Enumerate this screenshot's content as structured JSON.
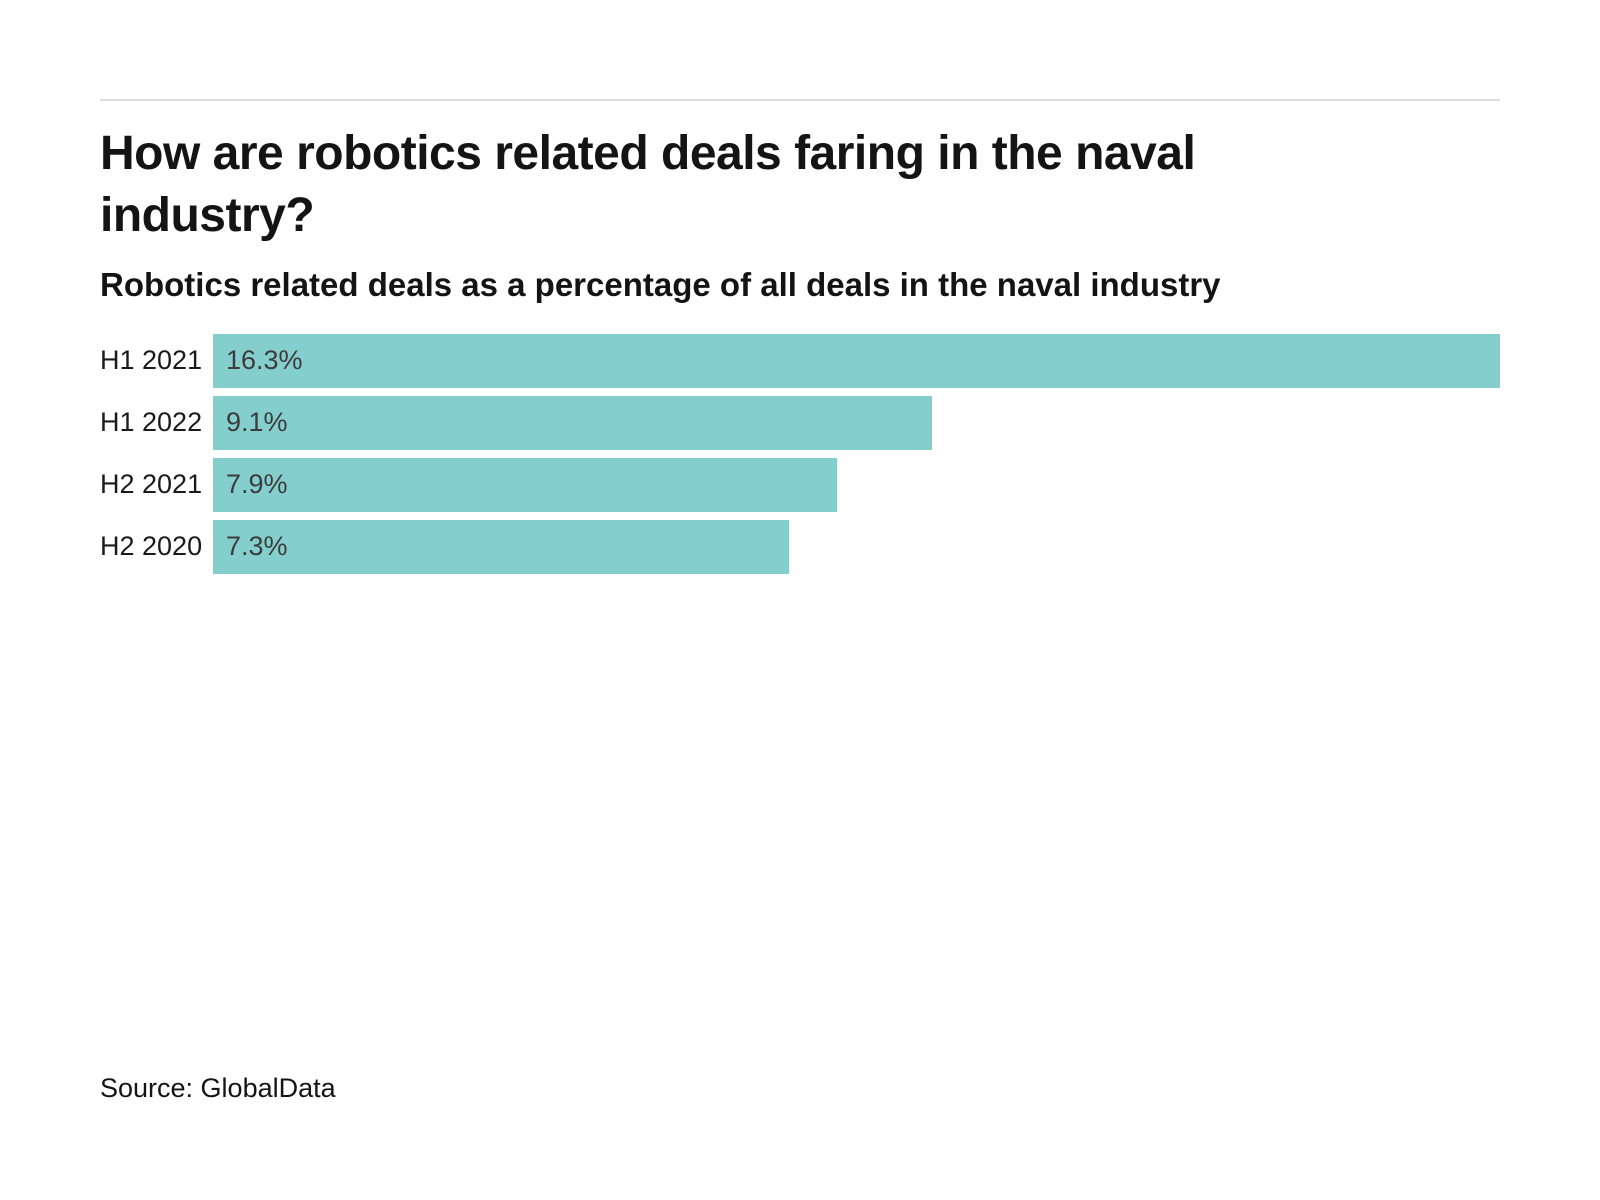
{
  "header": {
    "title": "How are robotics related deals faring in the naval industry?",
    "subtitle": "Robotics related deals as a percentage of all deals in the naval industry"
  },
  "chart_data": {
    "type": "bar",
    "orientation": "horizontal",
    "title": "How are robotics related deals faring in the naval industry?",
    "subtitle": "Robotics related deals as a percentage of all deals in the naval industry",
    "categories": [
      "H1 2021",
      "H1 2022",
      "H2 2021",
      "H2 2020"
    ],
    "values": [
      16.3,
      9.1,
      7.9,
      7.3
    ],
    "value_labels": [
      "16.3%",
      "9.1%",
      "7.9%",
      "7.3%"
    ],
    "xlim": [
      0,
      16.3
    ],
    "grid": false,
    "legend": false,
    "bar_color": "#85CECE",
    "value_label_position": "inside-left"
  },
  "colors": {
    "bar": "#85CECE",
    "divider": "#dcdcdc",
    "text": "#141414",
    "value_text": "#3c3c3c",
    "background": "#ffffff"
  },
  "footer": {
    "source": "Source: GlobalData"
  }
}
